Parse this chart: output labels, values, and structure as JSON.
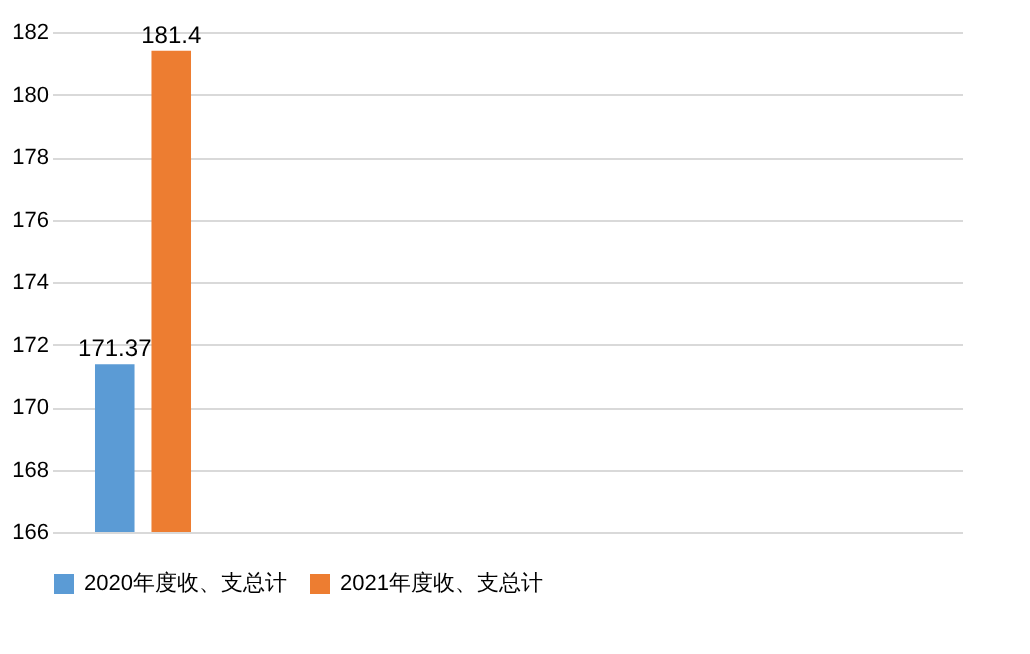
{
  "chart_data": {
    "type": "bar",
    "categories": [
      null,
      null,
      null,
      null,
      null
    ],
    "series": [
      {
        "name": "2020年度收、支总计",
        "color": "#5b9bd5",
        "values": [
          171.37,
          null,
          null,
          null,
          null
        ]
      },
      {
        "name": "2021年度收、支总计",
        "color": "#ed7d31",
        "values": [
          181.4,
          null,
          null,
          null,
          null
        ]
      }
    ],
    "ylim": [
      166,
      182
    ],
    "yticks": [
      166,
      168,
      170,
      172,
      174,
      176,
      178,
      180,
      182
    ],
    "grid": "y",
    "legend": "bottom",
    "data_labels": true
  }
}
